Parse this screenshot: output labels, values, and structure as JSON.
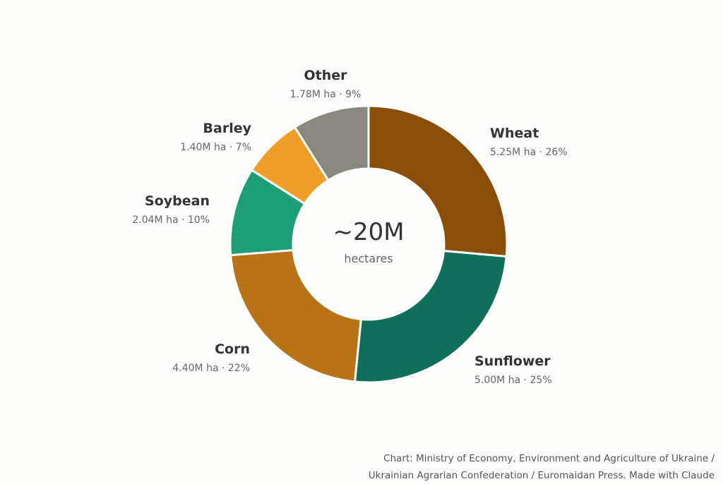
{
  "chart_data": {
    "type": "pie",
    "center": {
      "total": "~20M",
      "unit": "hectares"
    },
    "slices": [
      {
        "name": "Wheat",
        "value": 5.25,
        "label": "5.25M ha · 26%",
        "color": "#8b4e08"
      },
      {
        "name": "Sunflower",
        "value": 5.0,
        "label": "5.00M ha · 25%",
        "color": "#106f59"
      },
      {
        "name": "Corn",
        "value": 4.4,
        "label": "4.40M ha · 22%",
        "color": "#b97317"
      },
      {
        "name": "Soybean",
        "value": 2.04,
        "label": "2.04M ha · 10%",
        "color": "#1d9e76"
      },
      {
        "name": "Barley",
        "value": 1.4,
        "label": "1.40M ha · 7%",
        "color": "#ef9f27"
      },
      {
        "name": "Other",
        "value": 1.78,
        "label": "1.78M ha · 9%",
        "color": "#888780"
      }
    ]
  },
  "source": {
    "line1": "Chart: Ministry of Economy, Environment and Agriculture of Ukraine /",
    "line2": "Ukrainian Agrarian Confederation / Euromaidan Press. Made with Claude"
  }
}
